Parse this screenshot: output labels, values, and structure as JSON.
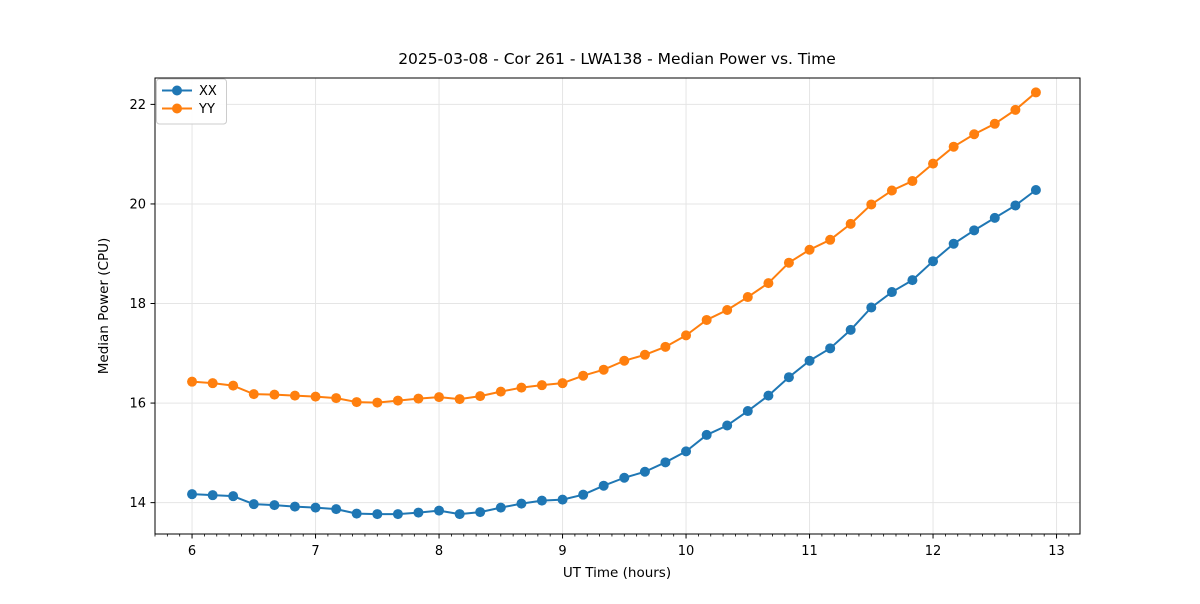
{
  "figure": {
    "background": "#ffffff",
    "spine_color": "#000000",
    "tick_color": "#000000"
  },
  "chart_data": {
    "type": "line",
    "title": "2025-03-08 - Cor 261 - LWA138 - Median Power vs. Time",
    "xlabel": "UT Time (hours)",
    "ylabel": "Median Power (CPU)",
    "xlim": [
      5.7,
      13.19
    ],
    "ylim": [
      13.37,
      22.53
    ],
    "xticks": [
      6,
      7,
      8,
      9,
      10,
      11,
      12,
      13
    ],
    "yticks": [
      14,
      16,
      18,
      20,
      22
    ],
    "x_minor_step": 0.1,
    "grid": true,
    "grid_color": "#e5e5e5",
    "legend_position": "upper-left",
    "x": [
      6.0,
      6.167,
      6.333,
      6.5,
      6.667,
      6.833,
      7.0,
      7.167,
      7.333,
      7.5,
      7.667,
      7.833,
      8.0,
      8.167,
      8.333,
      8.5,
      8.667,
      8.833,
      9.0,
      9.167,
      9.333,
      9.5,
      9.667,
      9.833,
      10.0,
      10.167,
      10.333,
      10.5,
      10.667,
      10.833,
      11.0,
      11.167,
      11.333,
      11.5,
      11.667,
      11.833,
      12.0,
      12.167,
      12.333,
      12.5,
      12.667,
      12.833
    ],
    "series": [
      {
        "name": "XX",
        "color": "#1f77b4",
        "values": [
          14.17,
          14.15,
          14.13,
          13.97,
          13.95,
          13.92,
          13.9,
          13.87,
          13.78,
          13.77,
          13.77,
          13.8,
          13.84,
          13.77,
          13.81,
          13.9,
          13.98,
          14.04,
          14.06,
          14.16,
          14.34,
          14.5,
          14.62,
          14.81,
          15.03,
          15.36,
          15.55,
          15.84,
          16.15,
          16.52,
          16.85,
          17.1,
          17.47,
          17.92,
          18.23,
          18.47,
          18.85,
          19.2,
          19.47,
          19.72,
          19.97,
          20.28
        ]
      },
      {
        "name": "YY",
        "color": "#ff7f0e",
        "values": [
          16.43,
          16.4,
          16.35,
          16.18,
          16.17,
          16.15,
          16.13,
          16.1,
          16.02,
          16.01,
          16.05,
          16.09,
          16.12,
          16.08,
          16.14,
          16.23,
          16.31,
          16.36,
          16.4,
          16.55,
          16.67,
          16.85,
          16.97,
          17.13,
          17.36,
          17.67,
          17.87,
          18.13,
          18.41,
          18.82,
          19.08,
          19.28,
          19.6,
          19.99,
          20.27,
          20.46,
          20.81,
          21.15,
          21.4,
          21.61,
          21.89,
          22.24
        ]
      }
    ]
  }
}
